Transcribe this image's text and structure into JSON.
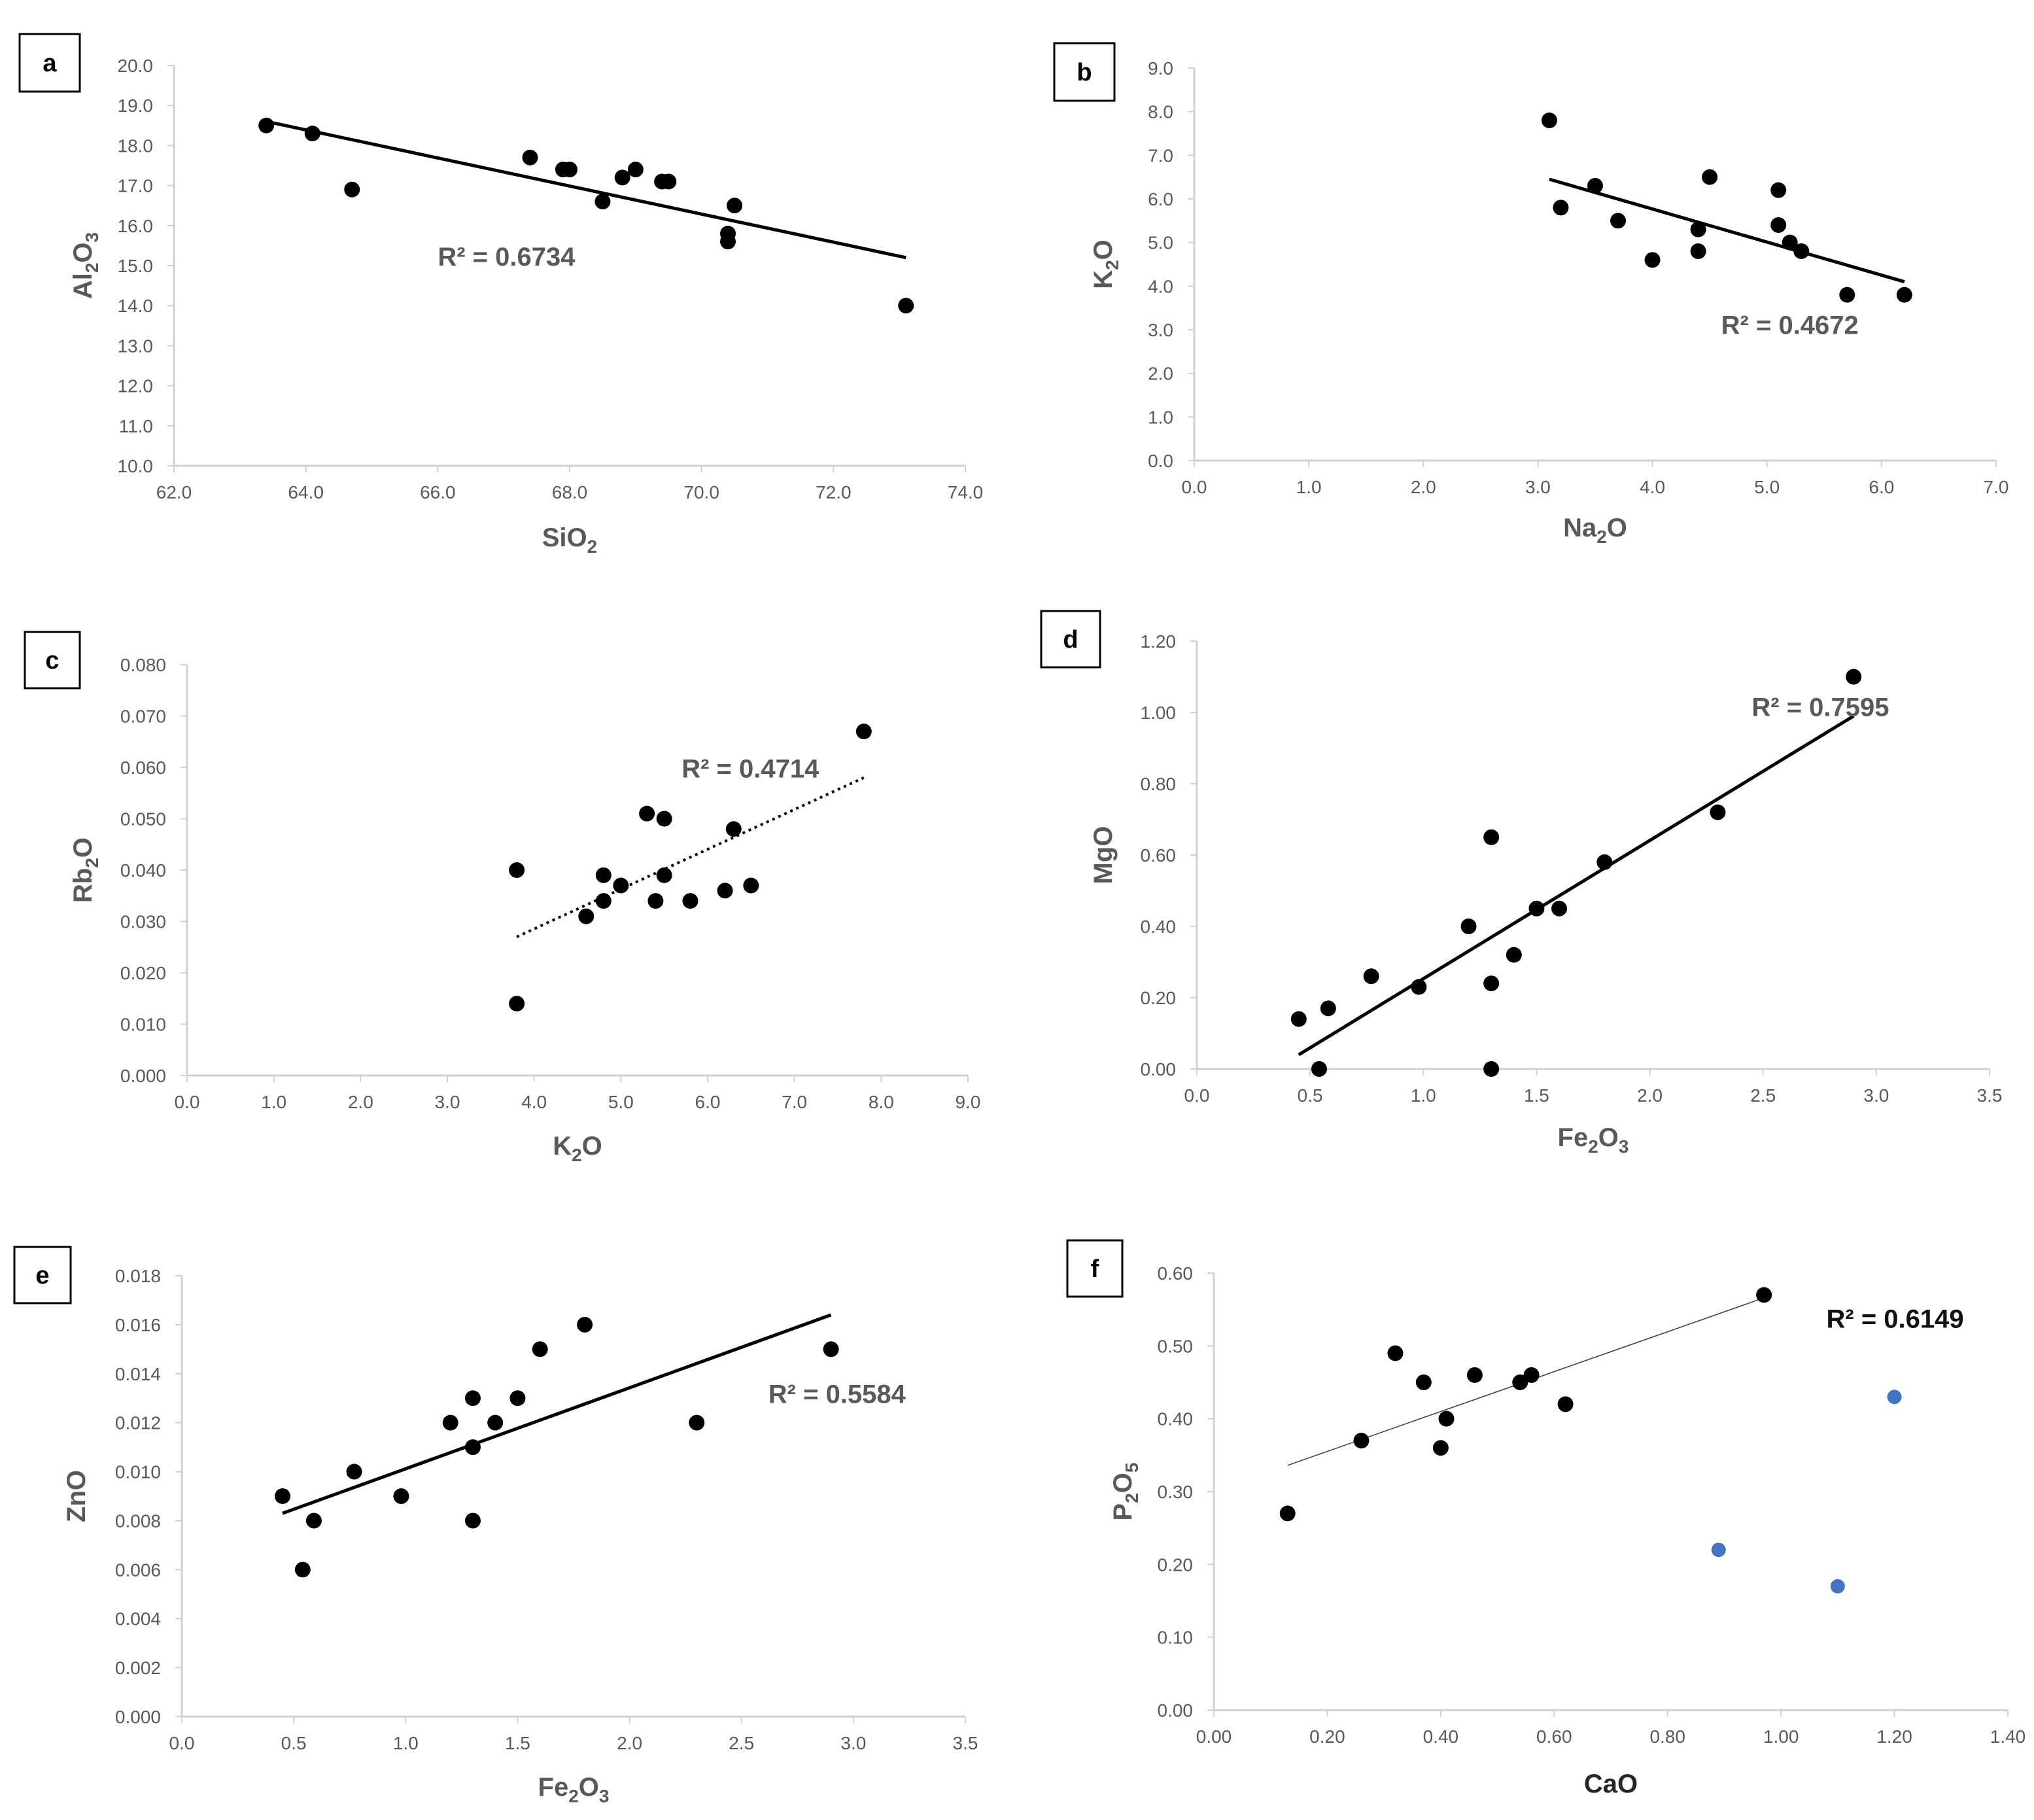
{
  "colors": {
    "point": "#000000",
    "trend": "#000000",
    "outlier": "#4472C4",
    "axis": "#D0D0D0",
    "text": "#595959"
  },
  "chart_data": [
    {
      "type": "scatter",
      "panel": "a",
      "title": "",
      "xlabel": "SiO",
      "xsub": "2",
      "xpost": "",
      "ylabel": "Al",
      "ysub1": "2",
      "ymid": "O",
      "ysub2": "3",
      "xlim": [
        62,
        74
      ],
      "ylim": [
        10,
        20
      ],
      "xticks": [
        "62.0",
        "64.0",
        "66.0",
        "68.0",
        "70.0",
        "72.0",
        "74.0"
      ],
      "yticks": [
        "10.0",
        "11.0",
        "12.0",
        "13.0",
        "14.0",
        "15.0",
        "16.0",
        "17.0",
        "18.0",
        "19.0",
        "20.0"
      ],
      "series": [
        {
          "x": [
            63.4,
            64.1,
            64.7,
            67.4,
            67.9,
            68.0,
            68.5,
            68.8,
            69.0,
            69.4,
            69.5,
            70.4,
            70.4,
            70.5,
            73.1
          ],
          "y": [
            18.5,
            18.3,
            16.9,
            17.7,
            17.4,
            17.4,
            16.6,
            17.2,
            17.4,
            17.1,
            17.1,
            15.8,
            15.6,
            16.5,
            14.0
          ]
        }
      ],
      "trendline": {
        "style": "solid",
        "from": [
          63.4,
          18.6
        ],
        "to": [
          73.1,
          15.2
        ]
      },
      "annotation": "R² = 0.6734",
      "ann_at": [
        66.0,
        15.0
      ]
    },
    {
      "type": "scatter",
      "panel": "b",
      "title": "",
      "xlabel": "Na",
      "xsub": "2",
      "xpost": "O",
      "ylabel": "K",
      "ysub1": "2",
      "ymid": "O",
      "ysub2": "",
      "xlim": [
        0,
        7
      ],
      "ylim": [
        0,
        9
      ],
      "xticks": [
        "0.0",
        "1.0",
        "2.0",
        "3.0",
        "4.0",
        "5.0",
        "6.0",
        "7.0"
      ],
      "yticks": [
        "0.0",
        "1.0",
        "2.0",
        "3.0",
        "4.0",
        "5.0",
        "6.0",
        "7.0",
        "8.0",
        "9.0"
      ],
      "series": [
        {
          "x": [
            3.1,
            3.2,
            3.5,
            3.7,
            4.0,
            4.4,
            4.4,
            4.5,
            5.1,
            5.1,
            5.2,
            5.3,
            5.7,
            6.2
          ],
          "y": [
            7.8,
            5.8,
            6.3,
            5.5,
            4.6,
            5.3,
            4.8,
            6.5,
            6.2,
            5.4,
            5.0,
            4.8,
            3.8,
            3.8
          ]
        }
      ],
      "trendline": {
        "style": "solid",
        "from": [
          3.1,
          6.45
        ],
        "to": [
          6.2,
          4.1
        ]
      },
      "annotation": "R² = 0.4672",
      "ann_at": [
        4.6,
        2.9
      ]
    },
    {
      "type": "scatter",
      "panel": "c",
      "title": "",
      "xlabel": "K",
      "xsub": "2",
      "xpost": "O",
      "ylabel": "Rb",
      "ysub1": "2",
      "ymid": "O",
      "ysub2": "",
      "xlim": [
        0,
        9
      ],
      "ylim": [
        0,
        0.08
      ],
      "xticks": [
        "0.0",
        "1.0",
        "2.0",
        "3.0",
        "4.0",
        "5.0",
        "6.0",
        "7.0",
        "8.0",
        "9.0"
      ],
      "yticks": [
        "0.000",
        "0.010",
        "0.020",
        "0.030",
        "0.040",
        "0.050",
        "0.060",
        "0.070",
        "0.080"
      ],
      "series": [
        {
          "x": [
            3.8,
            3.8,
            4.6,
            4.8,
            4.8,
            5.0,
            5.3,
            5.4,
            5.5,
            5.5,
            5.8,
            6.2,
            6.3,
            6.5,
            7.8
          ],
          "y": [
            0.04,
            0.014,
            0.031,
            0.034,
            0.039,
            0.037,
            0.051,
            0.034,
            0.05,
            0.039,
            0.034,
            0.036,
            0.048,
            0.037,
            0.067
          ]
        }
      ],
      "trendline": {
        "style": "dotted",
        "from": [
          3.8,
          0.027
        ],
        "to": [
          7.8,
          0.058
        ]
      },
      "annotation": "R² = 0.4714",
      "ann_at": [
        5.7,
        0.058
      ]
    },
    {
      "type": "scatter",
      "panel": "d",
      "title": "",
      "xlabel": "Fe",
      "xsub": "2",
      "xpost": "O3",
      "ylabel": "MgO",
      "ysub1": "",
      "ymid": "",
      "ysub2": "",
      "xlim": [
        0,
        3.5
      ],
      "ylim": [
        0,
        1.2
      ],
      "xticks": [
        "0.0",
        "0.5",
        "1.0",
        "1.5",
        "2.0",
        "2.5",
        "3.0",
        "3.5"
      ],
      "yticks": [
        "0.00",
        "0.20",
        "0.40",
        "0.60",
        "0.80",
        "1.00",
        "1.20"
      ],
      "series": [
        {
          "x": [
            0.45,
            0.54,
            0.58,
            0.77,
            0.98,
            1.2,
            1.3,
            1.3,
            1.3,
            1.4,
            1.5,
            1.6,
            1.8,
            2.3,
            2.9
          ],
          "y": [
            0.14,
            0.0,
            0.17,
            0.26,
            0.23,
            0.4,
            0.65,
            0.24,
            0.0,
            0.32,
            0.45,
            0.45,
            0.58,
            0.72,
            1.1
          ]
        }
      ],
      "trendline": {
        "style": "solid",
        "from": [
          0.45,
          0.04
        ],
        "to": [
          2.9,
          0.99
        ]
      },
      "annotation": "R² = 0.7595",
      "ann_at": [
        2.45,
        0.99
      ]
    },
    {
      "type": "scatter",
      "panel": "e",
      "title": "",
      "xlabel": "Fe",
      "xsub": "2",
      "xpost": "O3",
      "ylabel": "ZnO",
      "ysub1": "",
      "ymid": "",
      "ysub2": "",
      "xlim": [
        0,
        3.5
      ],
      "ylim": [
        0,
        0.018
      ],
      "xticks": [
        "0.0",
        "0.5",
        "1.0",
        "1.5",
        "2.0",
        "2.5",
        "3.0",
        "3.5"
      ],
      "yticks": [
        "0.000",
        "0.002",
        "0.004",
        "0.006",
        "0.008",
        "0.010",
        "0.012",
        "0.014",
        "0.016",
        "0.018"
      ],
      "series": [
        {
          "x": [
            0.45,
            0.54,
            0.59,
            0.77,
            0.98,
            1.2,
            1.3,
            1.3,
            1.3,
            1.4,
            1.5,
            1.6,
            1.8,
            2.3,
            2.9
          ],
          "y": [
            0.009,
            0.006,
            0.008,
            0.01,
            0.009,
            0.012,
            0.013,
            0.011,
            0.008,
            0.012,
            0.013,
            0.015,
            0.016,
            0.012,
            0.015
          ]
        }
      ],
      "trendline": {
        "style": "solid",
        "from": [
          0.45,
          0.0083
        ],
        "to": [
          2.9,
          0.0164
        ]
      },
      "annotation": "R² = 0.5584",
      "ann_at": [
        2.62,
        0.0128
      ]
    },
    {
      "type": "scatter",
      "panel": "f",
      "title": "",
      "xlabel": "CaO",
      "xsub": "",
      "xpost": "",
      "ylabel": "P",
      "ysub1": "2",
      "ymid": "O",
      "ysub2": "5",
      "xlim": [
        0,
        1.4
      ],
      "ylim": [
        0,
        0.6
      ],
      "xticks": [
        "0.00",
        "0.20",
        "0.40",
        "0.60",
        "0.80",
        "1.00",
        "1.20",
        "1.40"
      ],
      "yticks": [
        "0.00",
        "0.10",
        "0.20",
        "0.30",
        "0.40",
        "0.50",
        "0.60"
      ],
      "series": [
        {
          "x": [
            0.13,
            0.26,
            0.32,
            0.37,
            0.4,
            0.41,
            0.46,
            0.54,
            0.56,
            0.62,
            0.97
          ],
          "y": [
            0.27,
            0.37,
            0.49,
            0.45,
            0.36,
            0.4,
            0.46,
            0.45,
            0.46,
            0.42,
            0.57
          ]
        },
        {
          "x": [
            0.89,
            1.1,
            1.2
          ],
          "y": [
            0.22,
            0.17,
            0.43
          ],
          "outlier": true
        }
      ],
      "trendline": {
        "style": "thin",
        "from": [
          0.13,
          0.336
        ],
        "to": [
          0.97,
          0.566
        ]
      },
      "annotation": "R² = 0.6149",
      "ann_at": [
        1.08,
        0.525
      ]
    }
  ]
}
